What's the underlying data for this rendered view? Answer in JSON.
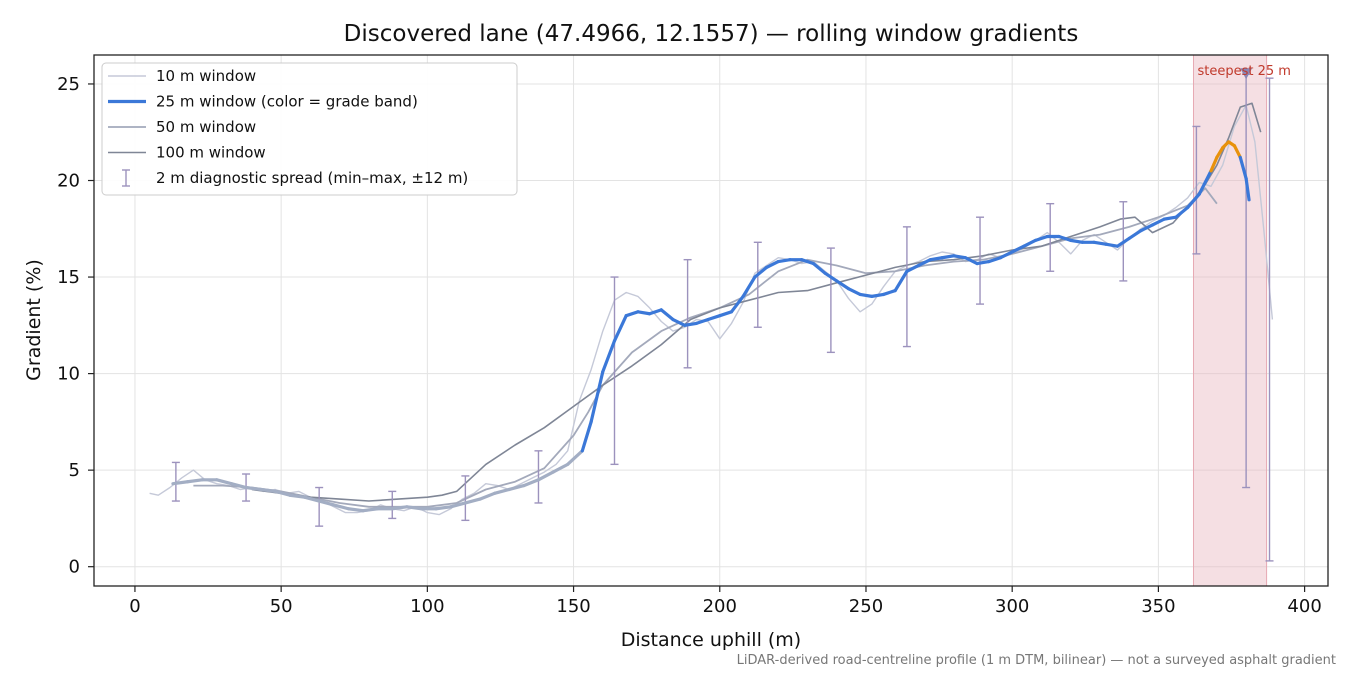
{
  "chart_data": {
    "type": "line",
    "title": "Discovered lane (47.4966, 12.1557) — rolling window gradients",
    "xlabel": "Distance uphill (m)",
    "ylabel": "Gradient (%)",
    "footnote": "LiDAR-derived road-centreline profile (1 m DTM, bilinear) — not a surveyed asphalt gradient",
    "xlim": [
      -14,
      408
    ],
    "ylim": [
      -1,
      26.5
    ],
    "x_ticks": [
      0,
      50,
      100,
      150,
      200,
      250,
      300,
      350,
      400
    ],
    "y_ticks": [
      0,
      5,
      10,
      15,
      20,
      25
    ],
    "grid": true,
    "legend_position": "top-left",
    "legend": [
      {
        "label": "10 m window",
        "kind": "line",
        "color": "#c5c9d8",
        "width": 1.4
      },
      {
        "label": "25 m window (color = grade band)",
        "kind": "line",
        "color": "#3b78d8",
        "width": 3.2
      },
      {
        "label": "50 m window",
        "kind": "line",
        "color": "#a3a9bb",
        "width": 1.8
      },
      {
        "label": "100 m window",
        "kind": "line",
        "color": "#7f8696",
        "width": 1.6
      },
      {
        "label": "2 m diagnostic spread (min–max, ±12 m)",
        "kind": "errorbar",
        "color": "#9c92bd"
      }
    ],
    "highlight": {
      "label": "steepest 25 m",
      "x_start": 362,
      "x_end": 387,
      "marker_x": 380,
      "marker_y": 25.5,
      "fill": "#e7b3bd",
      "text_color": "#c0392b"
    },
    "grade_band_colors": {
      "base": "#3b78d8",
      "steep": "#e8920c",
      "threshold": 20
    },
    "series": [
      {
        "name": "10 m window",
        "color": "#c5c9d8",
        "width": 1.4,
        "x": [
          5,
          8,
          12,
          16,
          20,
          24,
          28,
          32,
          36,
          40,
          44,
          48,
          52,
          56,
          60,
          64,
          68,
          72,
          76,
          80,
          84,
          88,
          92,
          96,
          100,
          104,
          108,
          112,
          116,
          120,
          124,
          128,
          132,
          136,
          140,
          144,
          148,
          152,
          156,
          160,
          164,
          168,
          172,
          176,
          180,
          184,
          188,
          192,
          196,
          200,
          204,
          208,
          212,
          216,
          220,
          224,
          228,
          232,
          236,
          240,
          244,
          248,
          252,
          256,
          260,
          264,
          268,
          272,
          276,
          280,
          284,
          288,
          292,
          296,
          300,
          304,
          308,
          312,
          316,
          320,
          324,
          328,
          332,
          336,
          340,
          344,
          348,
          352,
          356,
          360,
          364,
          368,
          372,
          376,
          380,
          383,
          386,
          389
        ],
        "y": [
          3.8,
          3.7,
          4.1,
          4.6,
          5.0,
          4.5,
          4.3,
          4.2,
          4.0,
          4.1,
          3.9,
          4.0,
          3.8,
          3.9,
          3.6,
          3.4,
          3.1,
          2.8,
          2.8,
          2.9,
          3.2,
          3.0,
          2.9,
          3.1,
          2.8,
          2.7,
          3.0,
          3.5,
          3.8,
          4.3,
          4.2,
          4.0,
          4.3,
          4.6,
          4.9,
          5.3,
          6.0,
          8.6,
          10.2,
          12.2,
          13.8,
          14.2,
          14.0,
          13.4,
          12.7,
          12.2,
          12.4,
          12.8,
          12.7,
          11.8,
          12.6,
          13.7,
          15.2,
          15.6,
          16.0,
          15.9,
          15.7,
          15.8,
          15.3,
          14.8,
          13.9,
          13.2,
          13.6,
          14.5,
          15.3,
          15.6,
          15.8,
          16.1,
          16.3,
          16.2,
          15.8,
          15.9,
          16.2,
          16.0,
          16.2,
          16.5,
          16.9,
          17.3,
          16.8,
          16.2,
          16.9,
          17.2,
          16.8,
          16.4,
          17.0,
          17.5,
          17.9,
          18.2,
          18.6,
          19.1,
          19.9,
          19.7,
          20.8,
          22.8,
          23.9,
          22.0,
          17.5,
          12.8
        ]
      },
      {
        "name": "50 m window",
        "color": "#a3a9bb",
        "width": 1.8,
        "x": [
          20,
          30,
          40,
          50,
          60,
          70,
          80,
          90,
          100,
          110,
          120,
          130,
          140,
          150,
          155,
          160,
          170,
          180,
          190,
          200,
          210,
          220,
          230,
          240,
          250,
          260,
          270,
          280,
          290,
          300,
          310,
          320,
          330,
          340,
          350,
          360,
          366,
          370
        ],
        "y": [
          4.2,
          4.2,
          4.1,
          3.9,
          3.6,
          3.3,
          3.1,
          3.1,
          3.1,
          3.3,
          4.0,
          4.4,
          5.1,
          6.8,
          8.0,
          9.4,
          11.1,
          12.2,
          12.9,
          13.4,
          14.1,
          15.3,
          15.9,
          15.6,
          15.2,
          15.3,
          15.6,
          15.8,
          15.9,
          16.2,
          16.6,
          17.0,
          17.2,
          17.6,
          18.1,
          18.7,
          19.6,
          18.8
        ]
      },
      {
        "name": "100 m window",
        "color": "#7f8696",
        "width": 1.6,
        "x": [
          40,
          50,
          60,
          70,
          80,
          90,
          100,
          105,
          110,
          115,
          120,
          130,
          140,
          150,
          160,
          170,
          180,
          190,
          200,
          210,
          220,
          230,
          240,
          250,
          260,
          270,
          280,
          290,
          300,
          310,
          320,
          330,
          337,
          342,
          348,
          355,
          362,
          366,
          370,
          374,
          378,
          382,
          385
        ],
        "y": [
          4.0,
          3.8,
          3.6,
          3.5,
          3.4,
          3.5,
          3.6,
          3.7,
          3.9,
          4.6,
          5.3,
          6.3,
          7.2,
          8.3,
          9.4,
          10.4,
          11.5,
          12.8,
          13.4,
          13.8,
          14.2,
          14.3,
          14.7,
          15.1,
          15.5,
          15.8,
          15.9,
          16.1,
          16.4,
          16.6,
          17.1,
          17.6,
          18.0,
          18.1,
          17.3,
          17.8,
          19.0,
          19.8,
          20.8,
          22.2,
          23.8,
          24.0,
          22.5
        ]
      },
      {
        "name": "25 m window (color = grade band)",
        "color": "#3b78d8",
        "width": 3.2,
        "x": [
          13,
          18,
          23,
          28,
          33,
          38,
          43,
          48,
          53,
          58,
          63,
          68,
          73,
          78,
          83,
          88,
          93,
          98,
          103,
          108,
          113,
          118,
          123,
          128,
          133,
          138,
          143,
          148,
          153,
          156,
          160,
          164,
          168,
          172,
          176,
          180,
          184,
          188,
          192,
          196,
          200,
          204,
          208,
          212,
          216,
          220,
          224,
          228,
          232,
          236,
          240,
          244,
          248,
          252,
          256,
          260,
          264,
          268,
          272,
          276,
          280,
          284,
          288,
          292,
          296,
          300,
          304,
          308,
          312,
          316,
          320,
          324,
          328,
          332,
          336,
          340,
          344,
          348,
          352,
          356,
          360,
          364,
          366,
          368,
          370,
          372,
          374,
          376,
          378,
          380,
          381
        ],
        "y": [
          4.3,
          4.4,
          4.5,
          4.5,
          4.3,
          4.1,
          4.0,
          3.9,
          3.7,
          3.6,
          3.4,
          3.2,
          3.0,
          2.9,
          3.0,
          3.0,
          3.1,
          3.0,
          3.0,
          3.1,
          3.3,
          3.5,
          3.8,
          4.0,
          4.2,
          4.5,
          4.9,
          5.3,
          6.0,
          7.5,
          10.1,
          11.7,
          13.0,
          13.2,
          13.1,
          13.3,
          12.8,
          12.5,
          12.6,
          12.8,
          13.0,
          13.2,
          14.0,
          15.0,
          15.5,
          15.8,
          15.9,
          15.9,
          15.7,
          15.2,
          14.8,
          14.4,
          14.1,
          14.0,
          14.1,
          14.3,
          15.3,
          15.6,
          15.9,
          16.0,
          16.1,
          16.0,
          15.7,
          15.8,
          16.0,
          16.3,
          16.6,
          16.9,
          17.1,
          17.1,
          16.9,
          16.8,
          16.8,
          16.7,
          16.6,
          17.0,
          17.4,
          17.7,
          18.0,
          18.1,
          18.6,
          19.3,
          19.9,
          20.5,
          21.2,
          21.7,
          22.0,
          21.8,
          21.2,
          20.1,
          19.0
        ]
      }
    ],
    "error_bars": [
      {
        "x": 14,
        "y": 4.3,
        "ymin": 3.4,
        "ymax": 5.4
      },
      {
        "x": 38,
        "y": 4.1,
        "ymin": 3.4,
        "ymax": 4.8
      },
      {
        "x": 63,
        "y": 3.4,
        "ymin": 2.1,
        "ymax": 4.1
      },
      {
        "x": 88,
        "y": 3.0,
        "ymin": 2.5,
        "ymax": 3.9
      },
      {
        "x": 113,
        "y": 3.3,
        "ymin": 2.4,
        "ymax": 4.7
      },
      {
        "x": 138,
        "y": 4.5,
        "ymin": 3.3,
        "ymax": 6.0
      },
      {
        "x": 164,
        "y": 11.7,
        "ymin": 5.3,
        "ymax": 15.0
      },
      {
        "x": 189,
        "y": 12.5,
        "ymin": 10.3,
        "ymax": 15.9
      },
      {
        "x": 213,
        "y": 15.0,
        "ymin": 12.4,
        "ymax": 16.8
      },
      {
        "x": 238,
        "y": 15.2,
        "ymin": 11.1,
        "ymax": 16.5
      },
      {
        "x": 264,
        "y": 15.3,
        "ymin": 11.4,
        "ymax": 17.6
      },
      {
        "x": 289,
        "y": 15.8,
        "ymin": 13.6,
        "ymax": 18.1
      },
      {
        "x": 313,
        "y": 17.0,
        "ymin": 15.3,
        "ymax": 18.8
      },
      {
        "x": 338,
        "y": 16.7,
        "ymin": 14.8,
        "ymax": 18.9
      },
      {
        "x": 363,
        "y": 19.3,
        "ymin": 16.2,
        "ymax": 22.8
      },
      {
        "x": 380,
        "y": 20.1,
        "ymin": 4.1,
        "ymax": 25.5
      },
      {
        "x": 388,
        "y": 20.0,
        "ymin": 0.3,
        "ymax": 25.3
      }
    ]
  }
}
